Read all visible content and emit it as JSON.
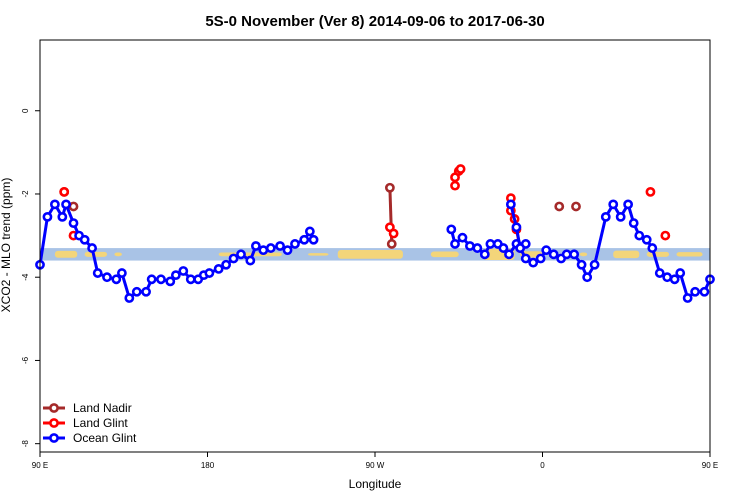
{
  "chart_data": {
    "type": "line",
    "title": "5S-0 November (Ver 8)   2014-09-06 to 2017-06-30",
    "xlabel": "Longitude",
    "ylabel": "XCO2 - MLO trend (ppm)",
    "xlim": [
      90,
      450
    ],
    "ylim": [
      -8.2,
      1.7
    ],
    "x_ticks": [
      {
        "value": 90,
        "label": "90 E"
      },
      {
        "value": 180,
        "label": "180"
      },
      {
        "value": 270,
        "label": "90 W"
      },
      {
        "value": 360,
        "label": "0"
      },
      {
        "value": 450,
        "label": "90 E"
      },
      {
        "value": 540,
        "label": "180"
      }
    ],
    "y_ticks": [
      {
        "value": 0,
        "label": "0"
      },
      {
        "value": -2,
        "label": "-2"
      },
      {
        "value": -4,
        "label": "-4"
      },
      {
        "value": -6,
        "label": "-6"
      },
      {
        "value": -8,
        "label": "-8"
      }
    ],
    "legend_position": "bottom-left",
    "background_band": {
      "y_range": [
        -3.6,
        -3.3
      ],
      "ocean_color": "#a9c3e6",
      "land_color": "#f3d57a"
    },
    "series": [
      {
        "name": "Land Nadir",
        "color": "#a52a2a",
        "segments": [
          [
            [
              103,
              -1.95
            ]
          ],
          [
            [
              108,
              -2.3
            ]
          ],
          [
            [
              278,
              -1.85
            ],
            [
              279,
              -3.2
            ]
          ],
          [
            [
              369,
              -2.3
            ]
          ],
          [
            [
              378,
              -2.3
            ]
          ]
        ]
      },
      {
        "name": "Land Glint",
        "color": "#ff0000",
        "segments": [
          [
            [
              103,
              -1.95
            ]
          ],
          [
            [
              108,
              -3.0
            ]
          ],
          [
            [
              278,
              -2.8
            ],
            [
              280,
              -2.95
            ]
          ],
          [
            [
              313,
              -1.8
            ],
            [
              313,
              -1.6
            ]
          ],
          [
            [
              315,
              -1.45
            ],
            [
              316,
              -1.4
            ]
          ],
          [
            [
              343,
              -2.1
            ],
            [
              343,
              -2.4
            ],
            [
              345,
              -2.6
            ],
            [
              346,
              -2.85
            ],
            [
              348,
              -3.3
            ]
          ],
          [
            [
              418,
              -1.95
            ]
          ],
          [
            [
              426,
              -3.0
            ]
          ]
        ]
      },
      {
        "name": "Ocean Glint",
        "color": "#0000ff",
        "segments": [
          [
            [
              90,
              -3.7
            ],
            [
              94,
              -2.55
            ],
            [
              98,
              -2.25
            ],
            [
              102,
              -2.55
            ],
            [
              104,
              -2.25
            ],
            [
              108,
              -2.7
            ],
            [
              111,
              -3.0
            ],
            [
              114,
              -3.1
            ],
            [
              118,
              -3.3
            ],
            [
              121,
              -3.9
            ],
            [
              126,
              -4.0
            ],
            [
              131,
              -4.05
            ],
            [
              134,
              -3.9
            ],
            [
              138,
              -4.5
            ],
            [
              142,
              -4.35
            ],
            [
              147,
              -4.35
            ],
            [
              150,
              -4.05
            ],
            [
              155,
              -4.05
            ],
            [
              160,
              -4.1
            ],
            [
              163,
              -3.95
            ],
            [
              167,
              -3.85
            ],
            [
              171,
              -4.05
            ],
            [
              175,
              -4.05
            ],
            [
              178,
              -3.95
            ],
            [
              181,
              -3.9
            ],
            [
              186,
              -3.8
            ],
            [
              190,
              -3.7
            ],
            [
              194,
              -3.55
            ],
            [
              198,
              -3.45
            ],
            [
              203,
              -3.6
            ],
            [
              206,
              -3.25
            ],
            [
              210,
              -3.35
            ],
            [
              214,
              -3.3
            ],
            [
              219,
              -3.25
            ],
            [
              223,
              -3.35
            ],
            [
              227,
              -3.2
            ],
            [
              232,
              -3.1
            ],
            [
              235,
              -2.9
            ],
            [
              237,
              -3.1
            ]
          ],
          [
            [
              311,
              -2.85
            ],
            [
              313,
              -3.2
            ],
            [
              317,
              -3.05
            ],
            [
              321,
              -3.25
            ],
            [
              325,
              -3.3
            ],
            [
              329,
              -3.45
            ],
            [
              332,
              -3.2
            ],
            [
              336,
              -3.2
            ],
            [
              339,
              -3.3
            ],
            [
              342,
              -3.45
            ],
            [
              346,
              -3.2
            ],
            [
              351,
              -3.2
            ]
          ],
          [
            [
              343,
              -2.25
            ],
            [
              346,
              -2.8
            ],
            [
              348,
              -3.3
            ],
            [
              351,
              -3.55
            ],
            [
              355,
              -3.65
            ],
            [
              359,
              -3.55
            ],
            [
              362,
              -3.35
            ],
            [
              366,
              -3.45
            ],
            [
              370,
              -3.55
            ],
            [
              373,
              -3.45
            ],
            [
              377,
              -3.45
            ],
            [
              381,
              -3.7
            ],
            [
              384,
              -4.0
            ],
            [
              388,
              -3.7
            ],
            [
              394,
              -2.55
            ],
            [
              398,
              -2.25
            ],
            [
              402,
              -2.55
            ],
            [
              406,
              -2.25
            ],
            [
              409,
              -2.7
            ],
            [
              412,
              -3.0
            ],
            [
              416,
              -3.1
            ],
            [
              419,
              -3.3
            ],
            [
              423,
              -3.9
            ],
            [
              427,
              -4.0
            ],
            [
              431,
              -4.05
            ],
            [
              434,
              -3.9
            ],
            [
              438,
              -4.5
            ],
            [
              442,
              -4.35
            ],
            [
              447,
              -4.35
            ],
            [
              450,
              -4.05
            ]
          ]
        ]
      }
    ]
  }
}
